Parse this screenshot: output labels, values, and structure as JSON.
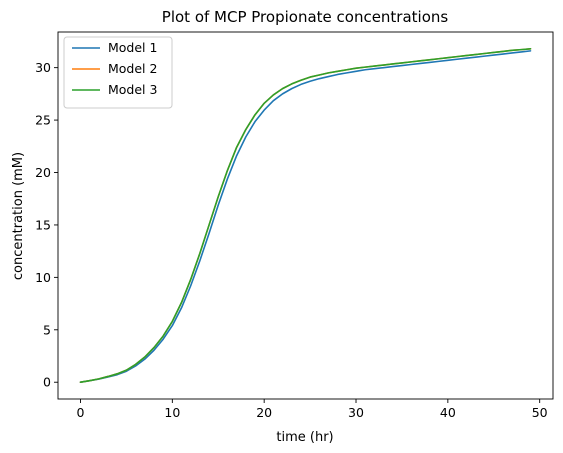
{
  "chart_data": {
    "type": "line",
    "title": "Plot of MCP Propionate concentrations",
    "xlabel": "time (hr)",
    "ylabel": "concentration (mM)",
    "xlim": [
      -2.45,
      51.45
    ],
    "ylim": [
      -1.6,
      33.4
    ],
    "xticks": [
      0,
      10,
      20,
      30,
      40,
      50
    ],
    "yticks": [
      0,
      5,
      10,
      15,
      20,
      25,
      30
    ],
    "grid": false,
    "legend_position": "top-left",
    "series": [
      {
        "name": "Model 1",
        "color": "#1f77b4",
        "x": [
          0,
          1,
          2,
          3,
          4,
          5,
          6,
          7,
          8,
          9,
          10,
          11,
          12,
          13,
          14,
          15,
          16,
          17,
          18,
          19,
          20,
          21,
          22,
          23,
          24,
          25,
          26,
          27,
          28,
          29,
          30,
          31,
          32,
          33,
          34,
          35,
          36,
          37,
          38,
          39,
          40,
          41,
          42,
          43,
          44,
          45,
          46,
          47,
          48,
          49
        ],
        "y": [
          0.0,
          0.15,
          0.3,
          0.5,
          0.72,
          1.05,
          1.55,
          2.2,
          3.05,
          4.1,
          5.4,
          7.1,
          9.2,
          11.6,
          14.2,
          16.9,
          19.4,
          21.6,
          23.4,
          24.85,
          25.95,
          26.85,
          27.5,
          28.0,
          28.4,
          28.7,
          28.95,
          29.15,
          29.35,
          29.5,
          29.65,
          29.8,
          29.9,
          30.0,
          30.1,
          30.2,
          30.3,
          30.4,
          30.5,
          30.6,
          30.7,
          30.8,
          30.9,
          31.0,
          31.1,
          31.2,
          31.3,
          31.4,
          31.5,
          31.6
        ]
      },
      {
        "name": "Model 2",
        "color": "#ff7f0e",
        "x": [
          0,
          1,
          2,
          3,
          4,
          5,
          6,
          7,
          8,
          9,
          10,
          11,
          12,
          13,
          14,
          15,
          16,
          17,
          18,
          19,
          20,
          21,
          22,
          23,
          24,
          25,
          26,
          27,
          28,
          29,
          30,
          31,
          32,
          33,
          34,
          35,
          36,
          37,
          38,
          39,
          40,
          41,
          42,
          43,
          44,
          45,
          46,
          47,
          48,
          49
        ],
        "y": [
          0.0,
          0.15,
          0.32,
          0.55,
          0.8,
          1.15,
          1.7,
          2.4,
          3.3,
          4.4,
          5.8,
          7.6,
          9.8,
          12.3,
          15.0,
          17.7,
          20.2,
          22.4,
          24.1,
          25.5,
          26.6,
          27.4,
          28.0,
          28.45,
          28.8,
          29.1,
          29.3,
          29.5,
          29.65,
          29.8,
          29.95,
          30.05,
          30.15,
          30.25,
          30.35,
          30.45,
          30.55,
          30.65,
          30.75,
          30.85,
          30.95,
          31.05,
          31.15,
          31.25,
          31.35,
          31.45,
          31.55,
          31.65,
          31.72,
          31.8
        ]
      },
      {
        "name": "Model 3",
        "color": "#2ca02c",
        "x": [
          0,
          1,
          2,
          3,
          4,
          5,
          6,
          7,
          8,
          9,
          10,
          11,
          12,
          13,
          14,
          15,
          16,
          17,
          18,
          19,
          20,
          21,
          22,
          23,
          24,
          25,
          26,
          27,
          28,
          29,
          30,
          31,
          32,
          33,
          34,
          35,
          36,
          37,
          38,
          39,
          40,
          41,
          42,
          43,
          44,
          45,
          46,
          47,
          48,
          49
        ],
        "y": [
          0.0,
          0.15,
          0.32,
          0.55,
          0.8,
          1.15,
          1.7,
          2.4,
          3.3,
          4.4,
          5.8,
          7.6,
          9.8,
          12.3,
          15.0,
          17.7,
          20.2,
          22.4,
          24.1,
          25.5,
          26.6,
          27.4,
          28.0,
          28.45,
          28.8,
          29.1,
          29.3,
          29.5,
          29.65,
          29.8,
          29.95,
          30.05,
          30.15,
          30.25,
          30.35,
          30.45,
          30.55,
          30.65,
          30.75,
          30.85,
          30.95,
          31.05,
          31.15,
          31.25,
          31.35,
          31.45,
          31.55,
          31.65,
          31.72,
          31.8
        ]
      }
    ]
  }
}
